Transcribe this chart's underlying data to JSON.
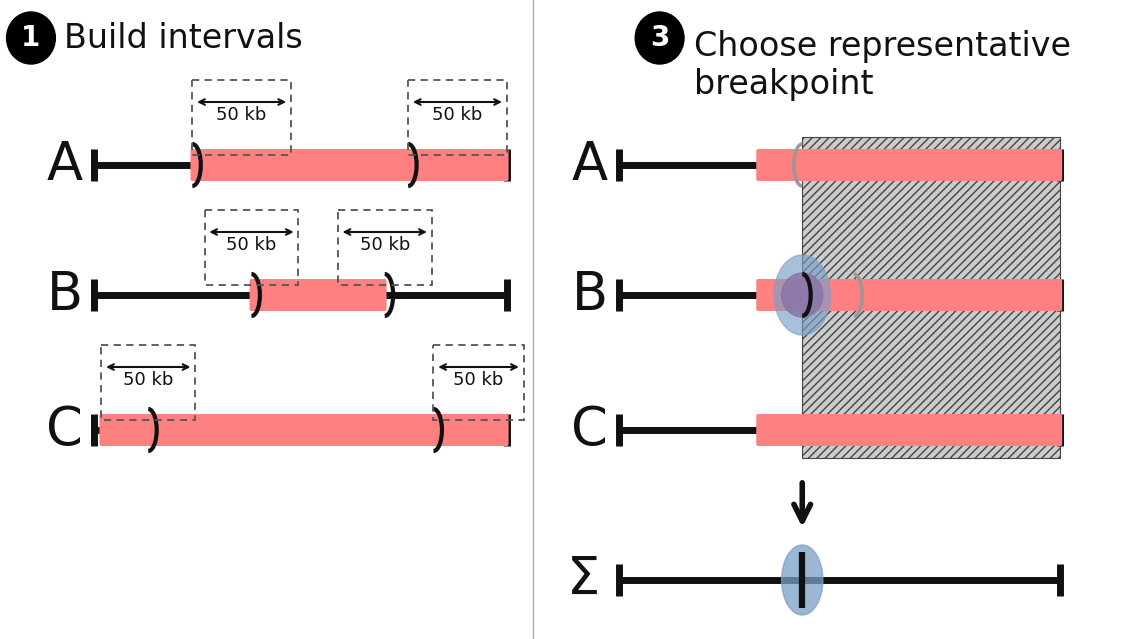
{
  "title1": "Build intervals",
  "title2": "Choose representative\nbreakpoint",
  "salmon_color": "#FF8080",
  "black": "#111111",
  "white": "#ffffff",
  "blue_ellipse": "#7B9EC8",
  "purple_circle": "#8875AA",
  "label_A": "A",
  "label_B": "B",
  "label_C": "C",
  "label_sigma": "Σ",
  "label_50kb": "50 kb",
  "fig_w": 11.36,
  "fig_h": 6.39,
  "dpi": 100
}
